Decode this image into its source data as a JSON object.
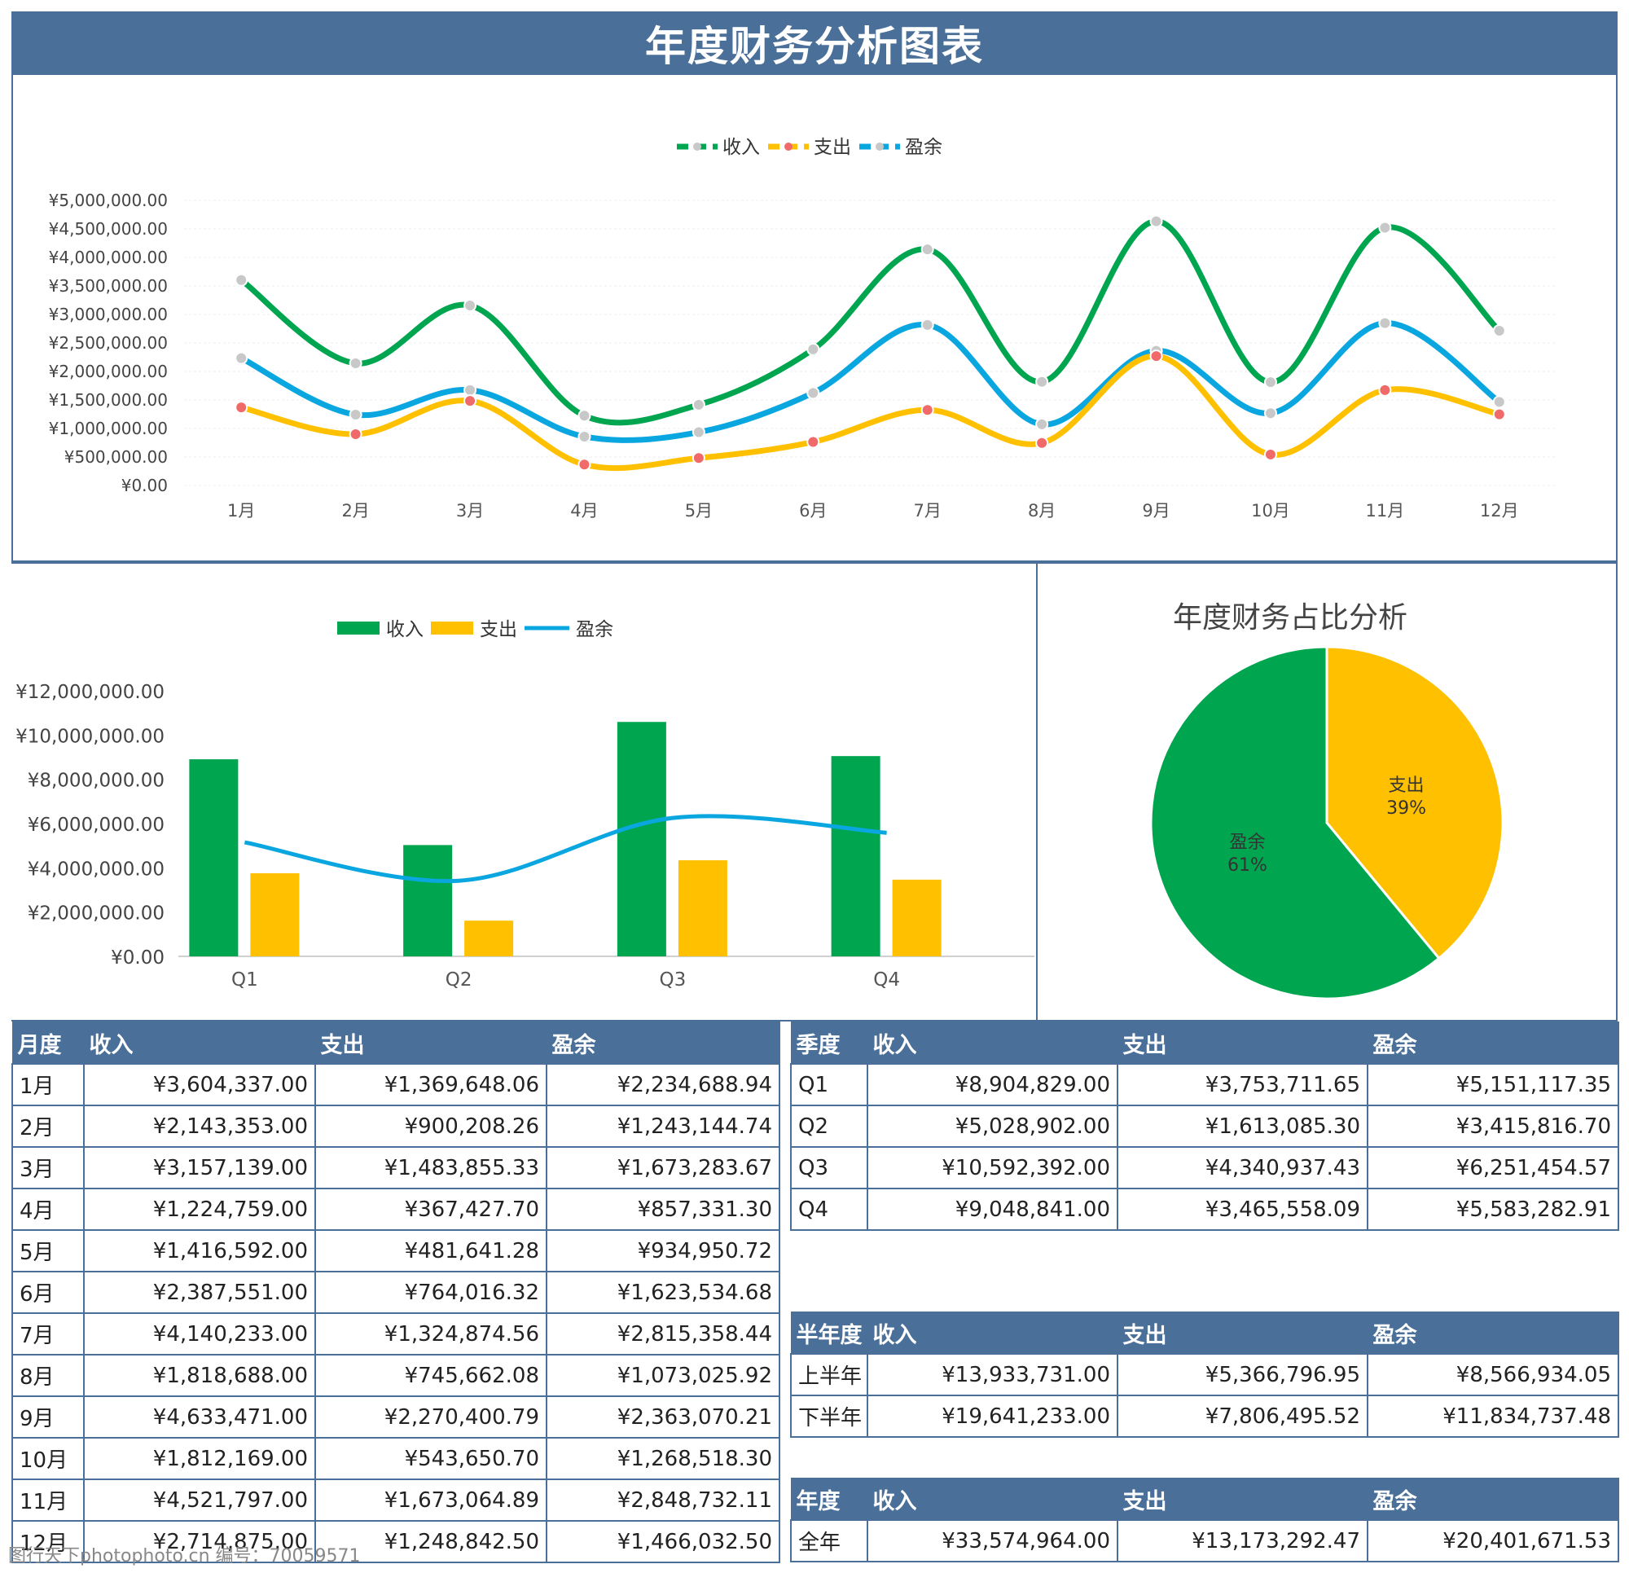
{
  "title": "年度财务分析图表",
  "colors": {
    "income": "#00a550",
    "expense": "#ffc000",
    "surplus": "#0aa6e0",
    "header": "#4a6f99",
    "dot_grey": "#c8c8c8",
    "dot_red": "#f06a6a"
  },
  "legend": {
    "income": "收入",
    "expense": "支出",
    "surplus": "盈余"
  },
  "chart_data": [
    {
      "type": "line",
      "categories": [
        "1月",
        "2月",
        "3月",
        "4月",
        "5月",
        "6月",
        "7月",
        "8月",
        "9月",
        "10月",
        "11月",
        "12月"
      ],
      "series": [
        {
          "name": "收入",
          "values": [
            3604337.0,
            2143353.0,
            3157139.0,
            1224759.0,
            1416592.0,
            2387551.0,
            4140233.0,
            1818688.0,
            4633471.0,
            1812169.0,
            4521797.0,
            2714875.0
          ]
        },
        {
          "name": "支出",
          "values": [
            1369648.06,
            900208.26,
            1483855.33,
            367427.7,
            481641.28,
            764016.32,
            1324874.56,
            745662.08,
            2270400.79,
            543650.7,
            1673064.89,
            1248842.5
          ]
        },
        {
          "name": "盈余",
          "values": [
            2234688.94,
            1243144.74,
            1673283.67,
            857331.3,
            934950.72,
            1623534.68,
            2815358.44,
            1073025.92,
            2363070.21,
            1268518.3,
            2848732.11,
            1466032.5
          ]
        }
      ],
      "y_ticks": [
        "¥5,000,000.00",
        "¥4,500,000.00",
        "¥4,000,000.00",
        "¥3,500,000.00",
        "¥3,000,000.00",
        "¥2,500,000.00",
        "¥2,000,000.00",
        "¥1,500,000.00",
        "¥1,000,000.00",
        "¥500,000.00",
        "¥0.00"
      ],
      "ylim": [
        0,
        5000000
      ],
      "legend_position": "top"
    },
    {
      "type": "bar",
      "categories": [
        "Q1",
        "Q2",
        "Q3",
        "Q4"
      ],
      "series": [
        {
          "name": "收入",
          "values": [
            8904829.0,
            5028902.0,
            10592392.0,
            9048841.0
          ]
        },
        {
          "name": "支出",
          "values": [
            3753711.65,
            1613085.3,
            4340937.43,
            3465558.09
          ]
        },
        {
          "name": "盈余",
          "values": [
            5151117.35,
            3415816.7,
            6251454.57,
            5583282.91
          ],
          "render": "line"
        }
      ],
      "y_ticks": [
        "¥12,000,000.00",
        "¥10,000,000.00",
        "¥8,000,000.00",
        "¥6,000,000.00",
        "¥4,000,000.00",
        "¥2,000,000.00",
        "¥0.00"
      ],
      "ylim": [
        0,
        12000000
      ],
      "legend_position": "top"
    },
    {
      "type": "pie",
      "title": "年度财务占比分析",
      "slices": [
        {
          "name": "支出",
          "value": 39,
          "label": "支出",
          "pct": "39%"
        },
        {
          "name": "盈余",
          "value": 61,
          "label": "盈余",
          "pct": "61%"
        }
      ]
    }
  ],
  "monthly_table": {
    "headers": [
      "月度",
      "收入",
      "支出",
      "盈余"
    ],
    "rows": [
      [
        "1月",
        "¥3,604,337.00",
        "¥1,369,648.06",
        "¥2,234,688.94"
      ],
      [
        "2月",
        "¥2,143,353.00",
        "¥900,208.26",
        "¥1,243,144.74"
      ],
      [
        "3月",
        "¥3,157,139.00",
        "¥1,483,855.33",
        "¥1,673,283.67"
      ],
      [
        "4月",
        "¥1,224,759.00",
        "¥367,427.70",
        "¥857,331.30"
      ],
      [
        "5月",
        "¥1,416,592.00",
        "¥481,641.28",
        "¥934,950.72"
      ],
      [
        "6月",
        "¥2,387,551.00",
        "¥764,016.32",
        "¥1,623,534.68"
      ],
      [
        "7月",
        "¥4,140,233.00",
        "¥1,324,874.56",
        "¥2,815,358.44"
      ],
      [
        "8月",
        "¥1,818,688.00",
        "¥745,662.08",
        "¥1,073,025.92"
      ],
      [
        "9月",
        "¥4,633,471.00",
        "¥2,270,400.79",
        "¥2,363,070.21"
      ],
      [
        "10月",
        "¥1,812,169.00",
        "¥543,650.70",
        "¥1,268,518.30"
      ],
      [
        "11月",
        "¥4,521,797.00",
        "¥1,673,064.89",
        "¥2,848,732.11"
      ],
      [
        "12月",
        "¥2,714,875.00",
        "¥1,248,842.50",
        "¥1,466,032.50"
      ]
    ]
  },
  "quarter_table": {
    "headers": [
      "季度",
      "收入",
      "支出",
      "盈余"
    ],
    "rows": [
      [
        "Q1",
        "¥8,904,829.00",
        "¥3,753,711.65",
        "¥5,151,117.35"
      ],
      [
        "Q2",
        "¥5,028,902.00",
        "¥1,613,085.30",
        "¥3,415,816.70"
      ],
      [
        "Q3",
        "¥10,592,392.00",
        "¥4,340,937.43",
        "¥6,251,454.57"
      ],
      [
        "Q4",
        "¥9,048,841.00",
        "¥3,465,558.09",
        "¥5,583,282.91"
      ]
    ]
  },
  "half_table": {
    "headers": [
      "半年度",
      "收入",
      "支出",
      "盈余"
    ],
    "rows": [
      [
        "上半年",
        "¥13,933,731.00",
        "¥5,366,796.95",
        "¥8,566,934.05"
      ],
      [
        "下半年",
        "¥19,641,233.00",
        "¥7,806,495.52",
        "¥11,834,737.48"
      ]
    ]
  },
  "year_table": {
    "headers": [
      "年度",
      "收入",
      "支出",
      "盈余"
    ],
    "rows": [
      [
        "全年",
        "¥33,574,964.00",
        "¥13,173,292.47",
        "¥20,401,671.53"
      ]
    ]
  },
  "footer": "图行天下photophoto.cn 编号：70059571"
}
